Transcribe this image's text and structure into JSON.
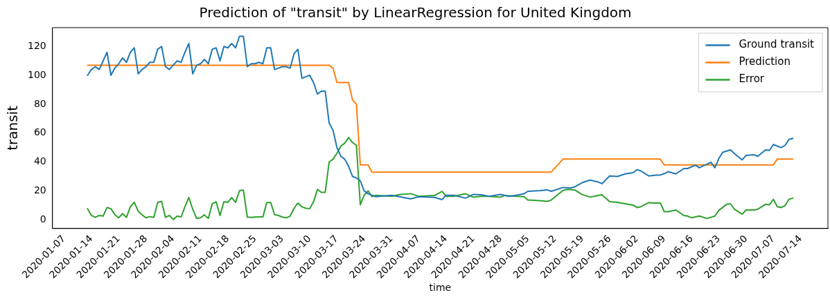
{
  "chart_data": {
    "type": "line",
    "title": "Prediction of \"transit\" by LinearRegression for United Kingdom",
    "xlabel": "time",
    "ylabel": "transit",
    "xlim": [
      "2020-01-04",
      "2020-07-21"
    ],
    "xticks": [
      "2020-01-07",
      "2020-01-14",
      "2020-01-21",
      "2020-01-28",
      "2020-02-04",
      "2020-02-11",
      "2020-02-18",
      "2020-02-25",
      "2020-03-03",
      "2020-03-10",
      "2020-03-17",
      "2020-03-24",
      "2020-03-31",
      "2020-04-07",
      "2020-04-14",
      "2020-04-21",
      "2020-04-28",
      "2020-05-05",
      "2020-05-12",
      "2020-05-19",
      "2020-05-26",
      "2020-06-02",
      "2020-06-09",
      "2020-06-16",
      "2020-06-23",
      "2020-06-30",
      "2020-07-07",
      "2020-07-14"
    ],
    "ylim": [
      -6,
      133
    ],
    "yticks": [
      0,
      20,
      40,
      60,
      80,
      100,
      120
    ],
    "grid": false,
    "legend": "top right",
    "marker": "none",
    "line_style": "solid",
    "series": [
      {
        "name": "Ground transit",
        "color": "#1f77b4",
        "x": [
          "2020-01-13",
          "2020-01-14",
          "2020-01-15",
          "2020-01-16",
          "2020-01-17",
          "2020-01-18",
          "2020-01-19",
          "2020-01-20",
          "2020-01-21",
          "2020-01-22",
          "2020-01-23",
          "2020-01-24",
          "2020-01-25",
          "2020-01-26",
          "2020-01-27",
          "2020-01-28",
          "2020-01-29",
          "2020-01-30",
          "2020-01-31",
          "2020-02-01",
          "2020-02-02",
          "2020-02-03",
          "2020-02-04",
          "2020-02-05",
          "2020-02-06",
          "2020-02-07",
          "2020-02-08",
          "2020-02-09",
          "2020-02-10",
          "2020-02-11",
          "2020-02-12",
          "2020-02-13",
          "2020-02-14",
          "2020-02-15",
          "2020-02-16",
          "2020-02-17",
          "2020-02-18",
          "2020-02-19",
          "2020-02-20",
          "2020-02-21",
          "2020-02-22",
          "2020-02-23",
          "2020-02-24",
          "2020-02-25",
          "2020-02-26",
          "2020-02-27",
          "2020-02-28",
          "2020-02-29",
          "2020-03-01",
          "2020-03-02",
          "2020-03-03",
          "2020-03-04",
          "2020-03-05",
          "2020-03-06",
          "2020-03-07",
          "2020-03-08",
          "2020-03-09",
          "2020-03-10",
          "2020-03-11",
          "2020-03-12",
          "2020-03-13",
          "2020-03-14",
          "2020-03-15",
          "2020-03-16",
          "2020-03-17",
          "2020-03-18",
          "2020-03-19",
          "2020-03-20",
          "2020-03-21",
          "2020-03-22",
          "2020-03-23",
          "2020-03-24",
          "2020-03-25",
          "2020-03-26",
          "2020-03-27",
          "2020-03-31",
          "2020-04-02",
          "2020-04-05",
          "2020-04-07",
          "2020-04-11",
          "2020-04-13",
          "2020-04-14",
          "2020-04-16",
          "2020-04-19",
          "2020-04-21",
          "2020-04-23",
          "2020-04-25",
          "2020-04-28",
          "2020-04-30",
          "2020-05-02",
          "2020-05-04",
          "2020-05-05",
          "2020-05-08",
          "2020-05-10",
          "2020-05-11",
          "2020-05-14",
          "2020-05-16",
          "2020-05-17",
          "2020-05-19",
          "2020-05-21",
          "2020-05-23",
          "2020-05-24",
          "2020-05-26",
          "2020-05-28",
          "2020-05-30",
          "2020-06-01",
          "2020-06-02",
          "2020-06-03",
          "2020-06-05",
          "2020-06-07",
          "2020-06-08",
          "2020-06-09",
          "2020-06-10",
          "2020-06-12",
          "2020-06-14",
          "2020-06-15",
          "2020-06-17",
          "2020-06-18",
          "2020-06-19",
          "2020-06-21",
          "2020-06-22",
          "2020-06-23",
          "2020-06-24",
          "2020-06-26",
          "2020-06-27",
          "2020-06-29",
          "2020-06-30",
          "2020-07-02",
          "2020-07-03",
          "2020-07-05",
          "2020-07-06",
          "2020-07-07",
          "2020-07-08",
          "2020-07-09",
          "2020-07-10",
          "2020-07-11",
          "2020-07-12"
        ],
        "values": [
          100,
          104,
          106,
          104,
          110,
          116,
          100,
          105,
          108,
          112,
          109,
          116,
          119,
          101,
          104,
          106,
          109,
          109,
          118,
          120,
          106,
          104,
          107,
          110,
          109,
          116,
          122,
          101,
          107,
          108,
          111,
          108,
          118,
          119,
          110,
          120,
          119,
          122,
          119,
          127,
          127,
          106,
          108,
          108,
          109,
          108,
          119,
          119,
          104,
          105,
          106,
          106,
          105,
          115,
          118,
          98,
          99,
          100,
          95,
          87,
          89,
          89,
          67,
          62,
          50,
          44,
          42,
          37,
          30,
          29,
          27,
          20,
          18,
          17,
          16,
          17,
          16,
          14.5,
          16,
          15.5,
          14,
          17,
          17,
          15,
          17.6,
          17.3,
          16.3,
          17.6,
          16.3,
          17,
          18,
          19.7,
          20.2,
          20.7,
          19.7,
          22.4,
          22,
          22.8,
          25.8,
          27.5,
          26.2,
          25,
          30.4,
          30,
          31.8,
          32.6,
          34.7,
          33.8,
          30.4,
          30.9,
          31,
          32,
          33.3,
          31.8,
          35.5,
          35.5,
          37.8,
          36,
          37.3,
          39.8,
          36,
          42.4,
          46.7,
          48.4,
          45.8,
          41.5,
          44.6,
          45,
          44,
          48.4,
          48,
          52.1,
          51,
          50,
          51.5,
          55.6,
          56.4
        ]
      },
      {
        "name": "Prediction",
        "color": "#ff7f0e",
        "x": [
          "2020-01-13",
          "2020-03-14",
          "2020-03-15",
          "2020-03-16",
          "2020-03-17",
          "2020-03-20",
          "2020-03-21",
          "2020-03-22",
          "2020-03-23",
          "2020-03-25",
          "2020-03-26",
          "2020-05-11",
          "2020-05-14",
          "2020-06-08",
          "2020-06-09",
          "2020-07-07",
          "2020-07-08",
          "2020-07-12"
        ],
        "values": [
          107,
          107,
          107,
          105,
          95,
          95,
          83,
          80,
          38,
          38,
          33,
          33,
          42,
          42,
          38,
          38,
          42,
          42
        ]
      },
      {
        "name": "Error",
        "color": "#2ca02c",
        "x": [
          "2020-01-13",
          "2020-01-14",
          "2020-01-15",
          "2020-01-16",
          "2020-01-17",
          "2020-01-18",
          "2020-01-19",
          "2020-01-20",
          "2020-01-21",
          "2020-01-22",
          "2020-01-23",
          "2020-01-24",
          "2020-01-25",
          "2020-01-26",
          "2020-01-27",
          "2020-01-28",
          "2020-01-29",
          "2020-01-30",
          "2020-01-31",
          "2020-02-01",
          "2020-02-02",
          "2020-02-03",
          "2020-02-04",
          "2020-02-05",
          "2020-02-06",
          "2020-02-07",
          "2020-02-08",
          "2020-02-09",
          "2020-02-10",
          "2020-02-11",
          "2020-02-12",
          "2020-02-13",
          "2020-02-14",
          "2020-02-15",
          "2020-02-16",
          "2020-02-17",
          "2020-02-18",
          "2020-02-19",
          "2020-02-20",
          "2020-02-21",
          "2020-02-22",
          "2020-02-23",
          "2020-02-24",
          "2020-02-25",
          "2020-02-26",
          "2020-02-27",
          "2020-02-28",
          "2020-02-29",
          "2020-03-01",
          "2020-03-02",
          "2020-03-03",
          "2020-03-04",
          "2020-03-05",
          "2020-03-06",
          "2020-03-07",
          "2020-03-08",
          "2020-03-09",
          "2020-03-10",
          "2020-03-11",
          "2020-03-12",
          "2020-03-13",
          "2020-03-14",
          "2020-03-15",
          "2020-03-16",
          "2020-03-17",
          "2020-03-18",
          "2020-03-19",
          "2020-03-20",
          "2020-03-21",
          "2020-03-22",
          "2020-03-23",
          "2020-03-24",
          "2020-03-25",
          "2020-03-26",
          "2020-03-27",
          "2020-03-31",
          "2020-04-02",
          "2020-04-05",
          "2020-04-07",
          "2020-04-11",
          "2020-04-13",
          "2020-04-14",
          "2020-04-16",
          "2020-04-19",
          "2020-04-21",
          "2020-04-23",
          "2020-04-25",
          "2020-04-28",
          "2020-04-29",
          "2020-05-02",
          "2020-05-04",
          "2020-05-05",
          "2020-05-08",
          "2020-05-10",
          "2020-05-11",
          "2020-05-14",
          "2020-05-15",
          "2020-05-17",
          "2020-05-19",
          "2020-05-21",
          "2020-05-23",
          "2020-05-24",
          "2020-05-26",
          "2020-05-28",
          "2020-05-30",
          "2020-06-01",
          "2020-06-02",
          "2020-06-03",
          "2020-06-05",
          "2020-06-06",
          "2020-06-08",
          "2020-06-09",
          "2020-06-10",
          "2020-06-12",
          "2020-06-14",
          "2020-06-15",
          "2020-06-16",
          "2020-06-18",
          "2020-06-20",
          "2020-06-22",
          "2020-06-23",
          "2020-06-25",
          "2020-06-26",
          "2020-06-27",
          "2020-06-29",
          "2020-06-30",
          "2020-07-02",
          "2020-07-03",
          "2020-07-05",
          "2020-07-06",
          "2020-07-07",
          "2020-07-08",
          "2020-07-09",
          "2020-07-10",
          "2020-07-11",
          "2020-07-12"
        ],
        "values": [
          7.7,
          3,
          1.7,
          3,
          2.6,
          8.5,
          7.7,
          3.6,
          1.4,
          4.3,
          1.7,
          9.1,
          12.1,
          6,
          3.4,
          1.4,
          2.2,
          1.7,
          12.1,
          12.8,
          1.7,
          3,
          0.2,
          2.6,
          1.9,
          9.1,
          15.4,
          7.3,
          0.9,
          1.4,
          3.4,
          1,
          11.1,
          12.5,
          3,
          12.5,
          12.1,
          15.4,
          12.1,
          20.2,
          20.5,
          1.9,
          1.7,
          1.9,
          2,
          2,
          12,
          12,
          3.6,
          3,
          1.9,
          1.4,
          2.6,
          8,
          11.6,
          9,
          8,
          7.7,
          12.5,
          21,
          19,
          19,
          40,
          42,
          46,
          51,
          53,
          57,
          53.5,
          51.5,
          10.4,
          17,
          20,
          16,
          17,
          16.2,
          17.4,
          18.1,
          16.2,
          16.8,
          19.7,
          16.3,
          16.3,
          18,
          15.7,
          16.2,
          16.3,
          15.7,
          16.8,
          16.3,
          16,
          13.7,
          13.2,
          12.8,
          13.7,
          20.3,
          21,
          20.7,
          17.4,
          15.7,
          16.8,
          17.3,
          12.5,
          12.1,
          11.1,
          10.2,
          8.5,
          9.1,
          11.9,
          11.6,
          11.6,
          5.6,
          5.6,
          6.8,
          3,
          2.6,
          1.4,
          2.6,
          0.9,
          2.6,
          6.5,
          10.7,
          11.1,
          7.3,
          3.9,
          6.8,
          6.8,
          7.3,
          10.7,
          10.4,
          14.2,
          9.1,
          8.5,
          9.8,
          14.2,
          15
        ]
      }
    ]
  }
}
